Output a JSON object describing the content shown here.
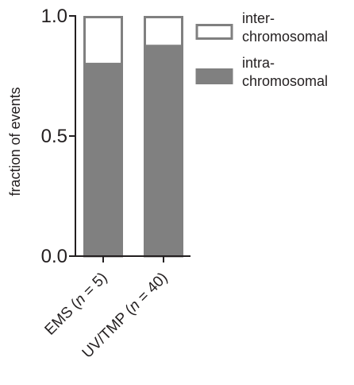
{
  "chart_data": {
    "type": "bar",
    "stacked": true,
    "title": "",
    "xlabel": "",
    "ylabel": "fraction of events",
    "ylim": [
      0,
      1.0
    ],
    "yticks": [
      "0.0",
      "0.5",
      "1.0"
    ],
    "ytick_values": [
      0,
      0.5,
      1.0
    ],
    "grid": false,
    "legend_position": "top-right",
    "categories": [
      {
        "prefix": "EMS (",
        "n_symbol": "n",
        "suffix": " = 5)"
      },
      {
        "prefix": "UV/TMP (",
        "n_symbol": "n",
        "suffix": " = 40)"
      }
    ],
    "series": [
      {
        "name_line1": "intra-",
        "name_line2": "chromosomal",
        "values": [
          0.8,
          0.875
        ],
        "fill": "#808080",
        "stroke": "#808080"
      },
      {
        "name_line1": "inter-",
        "name_line2": "chromosomal",
        "values": [
          0.2,
          0.125
        ],
        "fill": "#ffffff",
        "stroke": "#808080"
      }
    ],
    "axis_color": "#231f20"
  }
}
